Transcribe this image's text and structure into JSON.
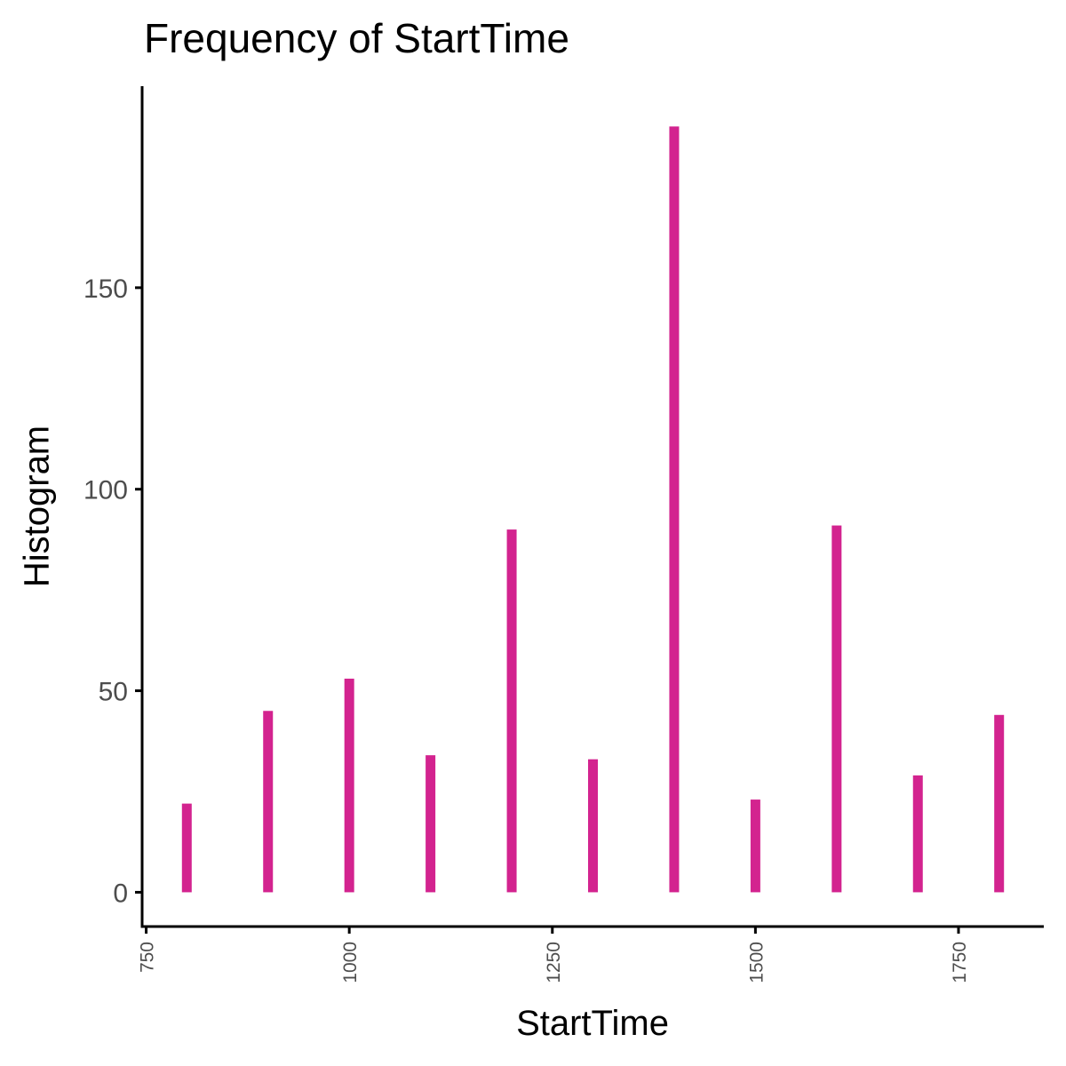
{
  "chart_data": {
    "type": "bar",
    "title": "Frequency of StartTime",
    "xlabel": "StartTime",
    "ylabel": "Histogram",
    "x": [
      800,
      900,
      1000,
      1100,
      1200,
      1300,
      1400,
      1500,
      1600,
      1700,
      1800
    ],
    "values": [
      22,
      45,
      53,
      34,
      90,
      33,
      190,
      23,
      91,
      29,
      44
    ],
    "xlim": [
      745,
      1855
    ],
    "ylim": [
      -8.5,
      200
    ],
    "xticks": [
      750,
      1000,
      1250,
      1500,
      1750
    ],
    "yticks": [
      0,
      50,
      100,
      150
    ],
    "bar_color": "#D3238F",
    "axis_color": "#000000",
    "tick_label_color": "#4D4D4D",
    "grid": false
  }
}
